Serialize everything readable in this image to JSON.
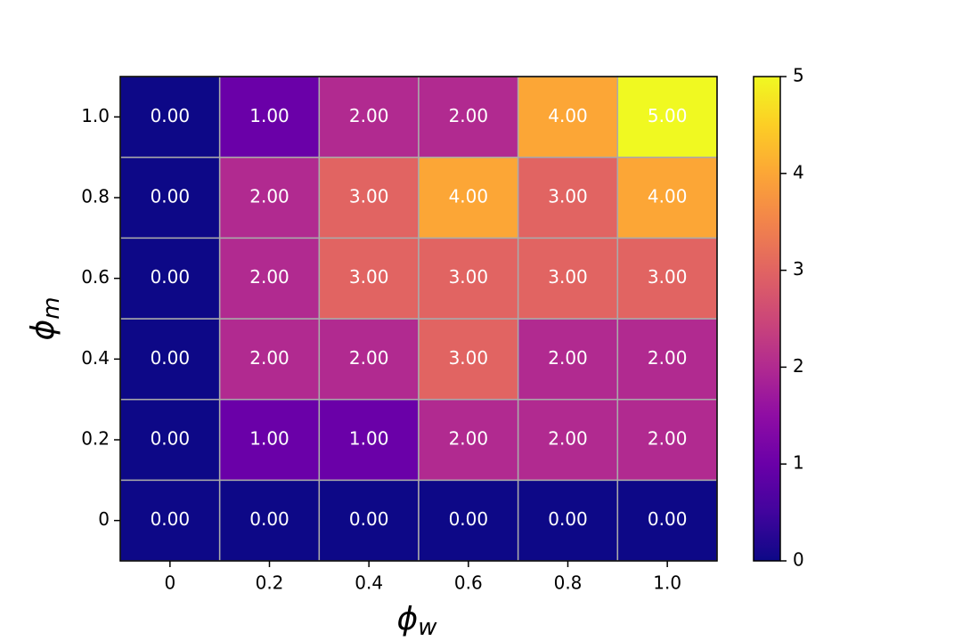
{
  "chart_data": {
    "type": "heatmap",
    "x_label": "ϕw",
    "y_label": "ϕm",
    "x_categories": [
      "0",
      "0.2",
      "0.4",
      "0.6",
      "0.8",
      "1.0"
    ],
    "y_categories": [
      "0",
      "0.2",
      "0.4",
      "0.6",
      "0.8",
      "1.0"
    ],
    "values": [
      [
        0,
        0,
        0,
        0,
        0,
        0
      ],
      [
        0,
        1,
        1,
        2,
        2,
        2
      ],
      [
        0,
        2,
        2,
        3,
        2,
        2
      ],
      [
        0,
        2,
        3,
        3,
        3,
        3
      ],
      [
        0,
        2,
        3,
        4,
        3,
        4
      ],
      [
        0,
        1,
        2,
        2,
        4,
        5
      ]
    ],
    "value_labels": [
      [
        "0.00",
        "0.00",
        "0.00",
        "0.00",
        "0.00",
        "0.00"
      ],
      [
        "0.00",
        "1.00",
        "1.00",
        "2.00",
        "2.00",
        "2.00"
      ],
      [
        "0.00",
        "2.00",
        "2.00",
        "3.00",
        "2.00",
        "2.00"
      ],
      [
        "0.00",
        "2.00",
        "3.00",
        "3.00",
        "3.00",
        "3.00"
      ],
      [
        "0.00",
        "2.00",
        "3.00",
        "4.00",
        "3.00",
        "4.00"
      ],
      [
        "0.00",
        "1.00",
        "2.00",
        "2.00",
        "4.00",
        "5.00"
      ]
    ],
    "colormap": "plasma",
    "colorbar_lim": [
      0,
      5
    ],
    "colorbar_ticks": [
      0,
      1,
      2,
      3,
      4,
      5
    ],
    "grid_color": "#aaaaaa"
  }
}
